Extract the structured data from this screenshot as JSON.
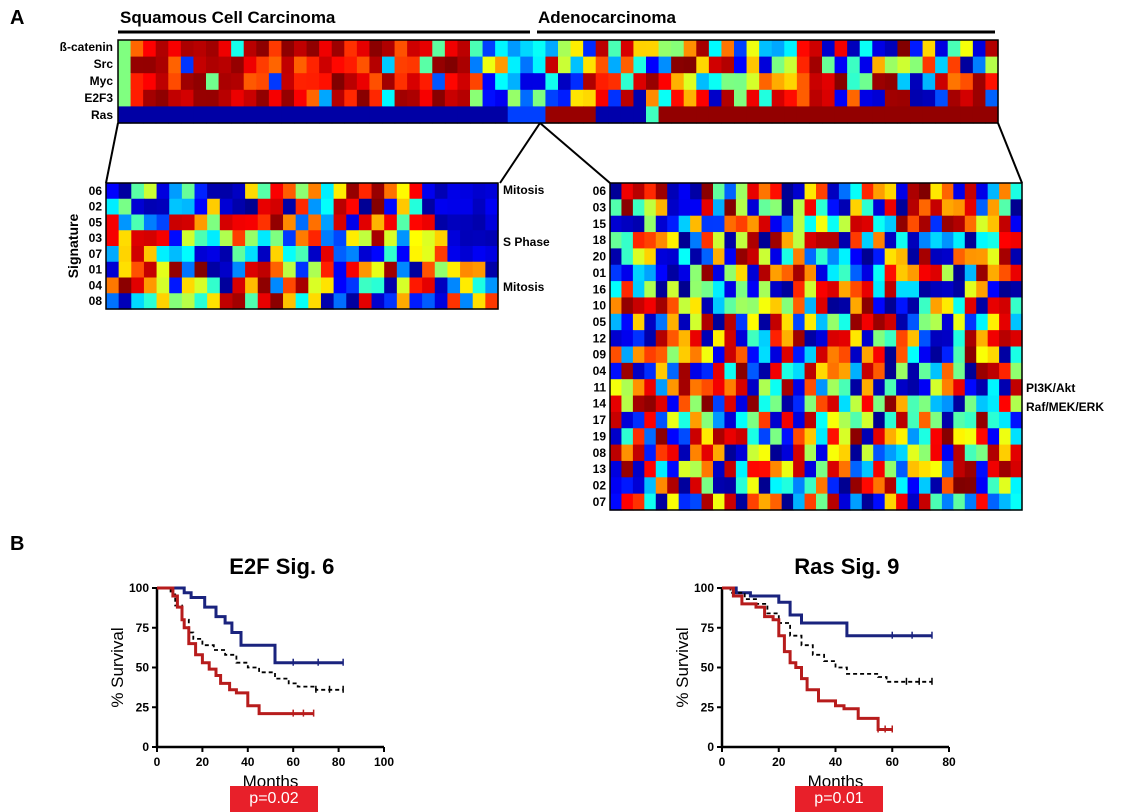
{
  "panel_a": {
    "letter": "A",
    "groups": [
      "Squamous Cell Carcinoma",
      "Adenocarcinoma"
    ],
    "pathway_rows": [
      "ß-catenin",
      "Src",
      "Myc",
      "E2F3",
      "Ras"
    ],
    "left_zoom": {
      "ylabel": "Signature",
      "rows": [
        "06",
        "02",
        "05",
        "03",
        "07",
        "01",
        "04",
        "08"
      ],
      "annotations": [
        "Mitosis",
        "S Phase",
        "Mitosis"
      ]
    },
    "right_zoom": {
      "rows": [
        "06",
        "03",
        "15",
        "18",
        "20",
        "01",
        "16",
        "10",
        "05",
        "12",
        "09",
        "04",
        "11",
        "14",
        "17",
        "19",
        "08",
        "13",
        "02",
        "07"
      ],
      "annotations": [
        "PI3K/Akt",
        "Raf/MEK/ERK"
      ]
    }
  },
  "panel_b": {
    "letter": "B",
    "p_values": [
      "p=0.02",
      "p=0.01"
    ]
  },
  "chart_data": [
    {
      "type": "heatmap",
      "rows": [
        "ß-catenin",
        "Src",
        "Myc",
        "E2F3",
        "Ras"
      ],
      "column_groups": [
        "Squamous Cell Carcinoma",
        "Adenocarcinoma"
      ],
      "colormap": [
        "#00008f",
        "#0000ff",
        "#00ffff",
        "#ffff00",
        "#ff0000",
        "#800000"
      ]
    },
    {
      "type": "heatmap",
      "rows": [
        "06",
        "02",
        "05",
        "03",
        "07",
        "01",
        "04",
        "08"
      ],
      "ylabel": "Signature",
      "annotations": [
        "Mitosis",
        "S Phase",
        "Mitosis"
      ]
    },
    {
      "type": "heatmap",
      "rows": [
        "06",
        "03",
        "15",
        "18",
        "20",
        "01",
        "16",
        "10",
        "05",
        "12",
        "09",
        "04",
        "11",
        "14",
        "17",
        "19",
        "08",
        "13",
        "02",
        "07"
      ],
      "annotations": [
        "PI3K/Akt",
        "Raf/MEK/ERK"
      ]
    },
    {
      "type": "line",
      "title": "E2F Sig. 6",
      "xlabel": "Months",
      "ylabel": "% Survival",
      "xlim": [
        0,
        100
      ],
      "ylim": [
        0,
        100
      ],
      "xticks": [
        "0",
        "20",
        "40",
        "60",
        "80",
        "100"
      ],
      "yticks": [
        "0",
        "25",
        "50",
        "75",
        "100"
      ],
      "annotation": "p=0.02",
      "series": [
        {
          "color": "#1a237e",
          "dash": false,
          "x": [
            0,
            8,
            12,
            15,
            21,
            26,
            30,
            33,
            37,
            40,
            52,
            54,
            60,
            82
          ],
          "y": [
            100,
            100,
            97,
            94,
            88,
            82,
            78,
            72,
            64,
            64,
            53,
            53,
            53,
            53
          ]
        },
        {
          "color": "#000000",
          "dash": true,
          "x": [
            0,
            6,
            8,
            11,
            14,
            16,
            20,
            25,
            30,
            35,
            40,
            45,
            52,
            58,
            62,
            70,
            82
          ],
          "y": [
            100,
            96,
            89,
            80,
            72,
            68,
            64,
            61,
            58,
            53,
            50,
            47,
            43,
            40,
            38,
            36,
            36
          ]
        },
        {
          "color": "#b71c1c",
          "dash": false,
          "x": [
            0,
            7,
            9,
            11,
            12,
            14,
            17,
            20,
            23,
            26,
            28,
            32,
            35,
            40,
            45,
            52,
            60,
            69
          ],
          "y": [
            100,
            95,
            88,
            80,
            75,
            65,
            58,
            53,
            49,
            45,
            40,
            36,
            34,
            26,
            21,
            21,
            21,
            21
          ]
        }
      ]
    },
    {
      "type": "line",
      "title": "Ras Sig. 9",
      "xlabel": "Months",
      "ylabel": "% Survival",
      "xlim": [
        0,
        80
      ],
      "ylim": [
        0,
        100
      ],
      "xticks": [
        "0",
        "20",
        "40",
        "60",
        "80"
      ],
      "yticks": [
        "0",
        "25",
        "50",
        "75",
        "100"
      ],
      "annotation": "p=0.01",
      "series": [
        {
          "color": "#1a237e",
          "dash": false,
          "x": [
            0,
            5,
            10,
            15,
            20,
            24,
            28,
            35,
            42,
            44,
            60,
            74
          ],
          "y": [
            100,
            97,
            95,
            95,
            91,
            83,
            78,
            78,
            78,
            70,
            70,
            70
          ]
        },
        {
          "color": "#000000",
          "dash": true,
          "x": [
            0,
            3,
            8,
            12,
            16,
            20,
            24,
            28,
            32,
            36,
            40,
            44,
            50,
            55,
            58,
            65,
            74
          ],
          "y": [
            100,
            97,
            93,
            90,
            84,
            78,
            70,
            64,
            58,
            54,
            50,
            46,
            46,
            44,
            41,
            41,
            41
          ]
        },
        {
          "color": "#b71c1c",
          "dash": false,
          "x": [
            0,
            4,
            7,
            12,
            15,
            18,
            20,
            22,
            24,
            26,
            28,
            30,
            34,
            40,
            43,
            48,
            55,
            60
          ],
          "y": [
            100,
            95,
            90,
            88,
            82,
            80,
            70,
            60,
            53,
            50,
            43,
            36,
            29,
            26,
            24,
            18,
            11,
            11
          ]
        }
      ]
    }
  ]
}
